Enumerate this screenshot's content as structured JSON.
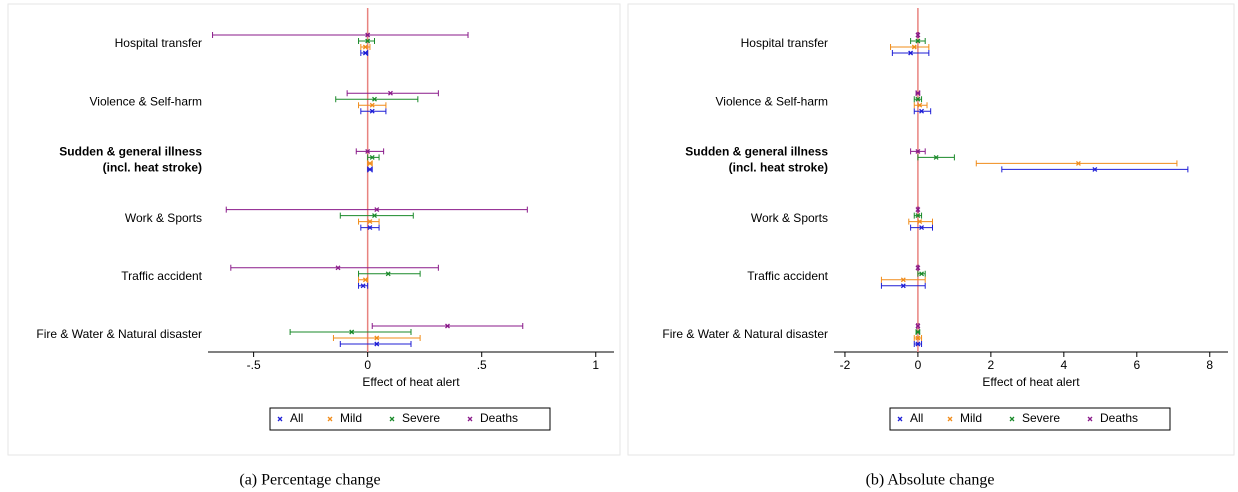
{
  "charts": [
    {
      "type": "errorbar",
      "caption": "(a)  Percentage change",
      "xlabel": "Effect of heat alert",
      "categories": [
        "Hospital transfer",
        "Violence & Self-harm",
        [
          "Sudden & general illness",
          "(incl. heat stroke)"
        ],
        "Work & Sports",
        "Traffic accident",
        "Fire & Water & Natural disaster"
      ],
      "bold_categories": [
        2
      ],
      "xlim": [
        -0.7,
        1.08
      ],
      "xticks": [
        {
          "value": -0.5,
          "label": "-.5"
        },
        0,
        {
          "value": 0.5,
          "label": ".5"
        },
        1
      ],
      "zero_line_color": "#e8837f",
      "series": [
        {
          "name": "All",
          "color": "#1f1fd6",
          "values": [
            -0.01,
            0.02,
            0.01,
            0.01,
            -0.02,
            0.04
          ],
          "lower": [
            -0.03,
            -0.03,
            0.0,
            -0.03,
            -0.04,
            -0.12
          ],
          "upper": [
            0.0,
            0.08,
            0.02,
            0.05,
            0.0,
            0.19
          ]
        },
        {
          "name": "Mild",
          "color": "#f08c1a",
          "values": [
            -0.01,
            0.02,
            0.01,
            0.01,
            -0.01,
            0.04
          ],
          "lower": [
            -0.03,
            -0.04,
            0.0,
            -0.04,
            -0.04,
            -0.15
          ],
          "upper": [
            0.01,
            0.08,
            0.02,
            0.05,
            0.0,
            0.23
          ]
        },
        {
          "name": "Severe",
          "color": "#1a8a2a",
          "values": [
            0.0,
            0.03,
            0.02,
            0.03,
            0.09,
            -0.07
          ],
          "lower": [
            -0.04,
            -0.14,
            0.0,
            -0.12,
            -0.04,
            -0.34
          ],
          "upper": [
            0.03,
            0.22,
            0.05,
            0.2,
            0.23,
            0.19
          ]
        },
        {
          "name": "Deaths",
          "color": "#8a1a8a",
          "values": [
            0.0,
            0.1,
            0.0,
            0.04,
            -0.13,
            0.35
          ],
          "lower": [
            -0.68,
            -0.09,
            -0.05,
            -0.62,
            -0.6,
            0.02
          ],
          "upper": [
            0.44,
            0.31,
            0.07,
            0.7,
            0.31,
            0.68
          ]
        }
      ]
    },
    {
      "type": "errorbar",
      "caption": "(b)  Absolute change",
      "xlabel": "Effect of heat alert",
      "categories": [
        "Hospital transfer",
        "Violence & Self-harm",
        [
          "Sudden & general illness",
          "(incl. heat stroke)"
        ],
        "Work & Sports",
        "Traffic accident",
        "Fire & Water & Natural disaster"
      ],
      "bold_categories": [
        2
      ],
      "xlim": [
        -2.3,
        8.5
      ],
      "xticks": [
        -2,
        0,
        2,
        4,
        6,
        8
      ],
      "zero_line_color": "#e8837f",
      "series": [
        {
          "name": "All",
          "color": "#1f1fd6",
          "values": [
            -0.2,
            0.1,
            4.85,
            0.1,
            -0.4,
            0.0
          ],
          "lower": [
            -0.7,
            -0.1,
            2.3,
            -0.2,
            -1.0,
            -0.1
          ],
          "upper": [
            0.3,
            0.35,
            7.4,
            0.4,
            0.2,
            0.1
          ]
        },
        {
          "name": "Mild",
          "color": "#f08c1a",
          "values": [
            -0.1,
            0.05,
            4.4,
            0.05,
            -0.4,
            0.0
          ],
          "lower": [
            -0.75,
            -0.1,
            1.6,
            -0.25,
            -1.0,
            -0.1
          ],
          "upper": [
            0.3,
            0.25,
            7.1,
            0.4,
            0.2,
            0.1
          ]
        },
        {
          "name": "Severe",
          "color": "#1a8a2a",
          "values": [
            0.0,
            0.0,
            0.5,
            0.0,
            0.1,
            0.0
          ],
          "lower": [
            -0.2,
            -0.1,
            0.0,
            -0.1,
            0.0,
            -0.05
          ],
          "upper": [
            0.2,
            0.1,
            1.0,
            0.1,
            0.2,
            0.05
          ]
        },
        {
          "name": "Deaths",
          "color": "#8a1a8a",
          "values": [
            0.0,
            0.0,
            0.0,
            0.0,
            0.0,
            0.0
          ],
          "lower": [
            -0.02,
            -0.05,
            -0.2,
            -0.02,
            -0.02,
            -0.03
          ],
          "upper": [
            0.02,
            0.05,
            0.2,
            0.02,
            0.02,
            0.03
          ]
        }
      ]
    }
  ]
}
